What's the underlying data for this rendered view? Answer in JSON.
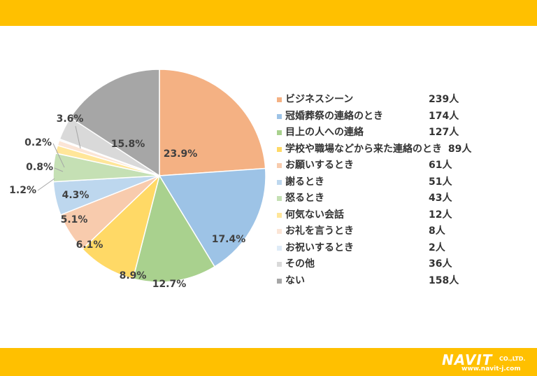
{
  "chart_data": {
    "type": "pie",
    "slices": [
      {
        "label": "ビジネスシーン",
        "count": "239人",
        "value": 23.9,
        "pct_label": "23.9%",
        "color": "#f4b183"
      },
      {
        "label": "冠婚葬祭の連絡のとき",
        "count": "174人",
        "value": 17.4,
        "pct_label": "17.4%",
        "color": "#9dc3e6"
      },
      {
        "label": "目上の人への連絡",
        "count": "127人",
        "value": 12.7,
        "pct_label": "12.7%",
        "color": "#a9d18e"
      },
      {
        "label": "学校や職場などから来た連絡のとき",
        "count": "89人",
        "value": 8.9,
        "pct_label": "8.9%",
        "color": "#ffd966"
      },
      {
        "label": "お願いするとき",
        "count": "61人",
        "value": 6.1,
        "pct_label": "6.1%",
        "color": "#f8cbad"
      },
      {
        "label": "謝るとき",
        "count": "51人",
        "value": 5.1,
        "pct_label": "5.1%",
        "color": "#bdd7ee"
      },
      {
        "label": "怒るとき",
        "count": "43人",
        "value": 4.3,
        "pct_label": "4.3%",
        "color": "#c5e0b4"
      },
      {
        "label": "何気ない会話",
        "count": "12人",
        "value": 1.2,
        "pct_label": "1.2%",
        "color": "#ffe699"
      },
      {
        "label": "お礼を言うとき",
        "count": "8人",
        "value": 0.8,
        "pct_label": "0.8%",
        "color": "#fbe5d6"
      },
      {
        "label": "お祝いするとき",
        "count": "2人",
        "value": 0.2,
        "pct_label": "0.2%",
        "color": "#deebf7"
      },
      {
        "label": "その他",
        "count": "36人",
        "value": 3.6,
        "pct_label": "3.6%",
        "color": "#d9d9d9"
      },
      {
        "label": "ない",
        "count": "158人",
        "value": 15.8,
        "pct_label": "15.8%",
        "color": "#a6a6a6"
      }
    ],
    "legend_position": "right"
  },
  "logo": {
    "name": "NAVIT",
    "suffix": "CO.,LTD.",
    "url": "www.navit-j.com"
  }
}
